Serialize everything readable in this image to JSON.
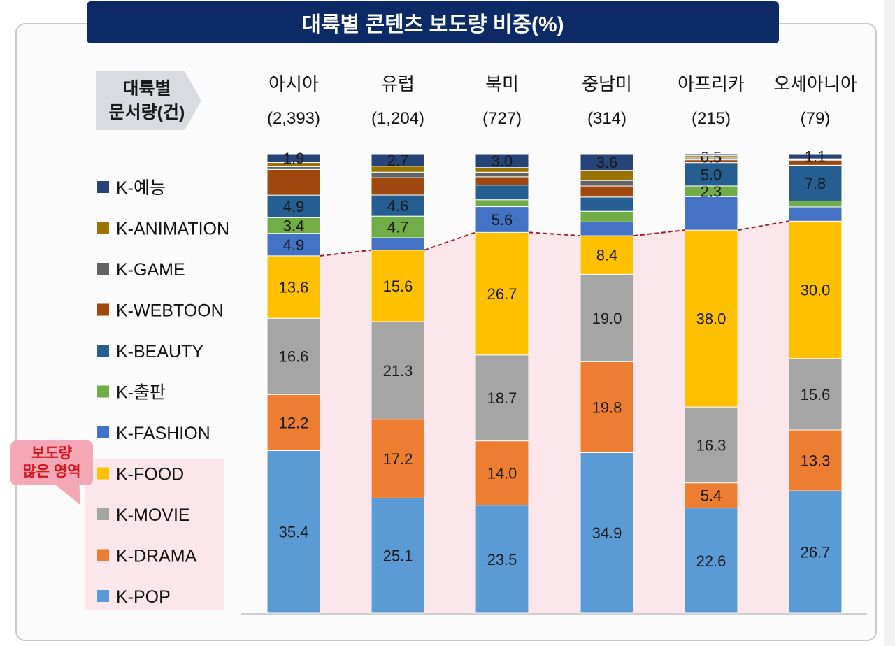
{
  "title": "대륙별 콘텐츠 보도량 비중(%)",
  "header_label": [
    "대륙별",
    "문서량(건)"
  ],
  "callout": [
    "보도량",
    "많은 영역"
  ],
  "colors": {
    "K-POP": "#5b9bd5",
    "K-DRAMA": "#ed7d31",
    "K-MOVIE": "#a5a5a5",
    "K-FOOD": "#ffc000",
    "K-FASHION": "#4472c4",
    "K-출판": "#70ad47",
    "K-BEAUTY": "#255e91",
    "K-WEBTOON": "#9e480e",
    "K-GAME": "#636363",
    "K-ANIMATION": "#997300",
    "K-예능": "#264478"
  },
  "chart_data": {
    "type": "bar",
    "stacked": true,
    "percent": true,
    "categories": [
      "아시아",
      "유럽",
      "북미",
      "중남미",
      "아프리카",
      "오세아니아"
    ],
    "category_counts": [
      "(2,393)",
      "(1,204)",
      "(727)",
      "(314)",
      "(215)",
      "(79)"
    ],
    "legend": [
      "K-예능",
      "K-ANIMATION",
      "K-GAME",
      "K-WEBTOON",
      "K-BEAUTY",
      "K-출판",
      "K-FASHION",
      "K-FOOD",
      "K-MOVIE",
      "K-DRAMA",
      "K-POP"
    ],
    "series": [
      {
        "name": "K-POP",
        "values": [
          35.4,
          25.1,
          23.5,
          34.9,
          22.6,
          26.7
        ],
        "labels": [
          "35.4",
          "25.1",
          "23.5",
          "34.9",
          "22.6",
          "26.7"
        ]
      },
      {
        "name": "K-DRAMA",
        "values": [
          12.2,
          17.2,
          14.0,
          19.8,
          5.4,
          13.3
        ],
        "labels": [
          "12.2",
          "17.2",
          "14.0",
          "19.8",
          "5.4",
          "13.3"
        ]
      },
      {
        "name": "K-MOVIE",
        "values": [
          16.6,
          21.3,
          18.7,
          19.0,
          16.3,
          15.6
        ],
        "labels": [
          "16.6",
          "21.3",
          "18.7",
          "19.0",
          "16.3",
          "15.6"
        ]
      },
      {
        "name": "K-FOOD",
        "values": [
          13.6,
          15.6,
          26.7,
          8.4,
          38.0,
          30.0
        ],
        "labels": [
          "13.6",
          "15.6",
          "26.7",
          "8.4",
          "38.0",
          "30.0"
        ]
      },
      {
        "name": "K-FASHION",
        "values": [
          4.9,
          2.7,
          5.6,
          3.0,
          7.2,
          3.1
        ],
        "labels": [
          "4.9",
          "",
          "5.6",
          "",
          "",
          ""
        ]
      },
      {
        "name": "K-출판",
        "values": [
          3.4,
          4.7,
          1.5,
          2.3,
          2.3,
          1.3
        ],
        "labels": [
          "3.4",
          "4.7",
          "",
          "",
          "2.3",
          ""
        ]
      },
      {
        "name": "K-BEAUTY",
        "values": [
          4.9,
          4.6,
          3.2,
          3.1,
          5.0,
          7.8
        ],
        "labels": [
          "4.9",
          "4.6",
          "",
          "",
          "5.0",
          "7.8"
        ]
      },
      {
        "name": "K-WEBTOON",
        "values": [
          5.6,
          3.8,
          1.8,
          2.4,
          0.6,
          1.0
        ],
        "labels": [
          "",
          "",
          "",
          "",
          "",
          ""
        ]
      },
      {
        "name": "K-GAME",
        "values": [
          0.6,
          1.2,
          1.0,
          1.2,
          0.4,
          0.2
        ],
        "labels": [
          "",
          "",
          "",
          "",
          "",
          ""
        ]
      },
      {
        "name": "K-ANIMATION",
        "values": [
          0.9,
          1.3,
          1.0,
          2.2,
          0.5,
          0.2
        ],
        "labels": [
          "",
          "",
          "",
          "",
          "0.5",
          ""
        ]
      },
      {
        "name": "K-예능",
        "values": [
          1.9,
          2.7,
          3.0,
          3.6,
          0.4,
          1.1
        ],
        "labels": [
          "1.9",
          "2.7",
          "3.0",
          "3.6",
          "",
          "1.1"
        ]
      }
    ],
    "ylim": [
      0,
      100
    ],
    "grid": false,
    "legend_position": "left",
    "highlight": "K-POP, K-DRAMA, K-MOVIE, K-FOOD"
  }
}
